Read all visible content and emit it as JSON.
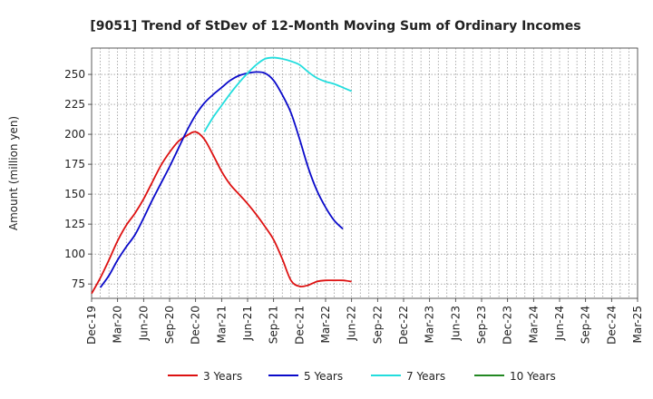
{
  "chart_data": {
    "type": "line",
    "title": "[9051]  Trend of StDev of 12-Month Moving Sum of Ordinary Incomes",
    "ylabel": "Amount (million yen)",
    "xlabel": "",
    "ylim": [
      63,
      272
    ],
    "yticks": [
      75,
      100,
      125,
      150,
      175,
      200,
      225,
      250
    ],
    "xticks": [
      "Dec-19",
      "Mar-20",
      "Jun-20",
      "Sep-20",
      "Dec-20",
      "Mar-21",
      "Jun-21",
      "Sep-21",
      "Dec-21",
      "Mar-22",
      "Jun-22",
      "Sep-22",
      "Dec-22",
      "Mar-23",
      "Jun-23",
      "Sep-23",
      "Dec-23",
      "Mar-24",
      "Jun-24",
      "Sep-24",
      "Dec-24",
      "Mar-25"
    ],
    "grid": true,
    "legend_position": "bottom",
    "series": [
      {
        "name": "3 Years",
        "color": "#dd1111",
        "points": [
          [
            0,
            67
          ],
          [
            1,
            80
          ],
          [
            2,
            95
          ],
          [
            3,
            111
          ],
          [
            4,
            124
          ],
          [
            5,
            134
          ],
          [
            6,
            146
          ],
          [
            7,
            160
          ],
          [
            8,
            174
          ],
          [
            9,
            185
          ],
          [
            10,
            194
          ],
          [
            11,
            199
          ],
          [
            12,
            202
          ],
          [
            13,
            196
          ],
          [
            14,
            183
          ],
          [
            15,
            169
          ],
          [
            16,
            158
          ],
          [
            17,
            150
          ],
          [
            18,
            142
          ],
          [
            19,
            133
          ],
          [
            20,
            123
          ],
          [
            21,
            112
          ],
          [
            22,
            96
          ],
          [
            23,
            78
          ],
          [
            24,
            73
          ],
          [
            25,
            74
          ],
          [
            26,
            77
          ],
          [
            27,
            78
          ],
          [
            28,
            78
          ],
          [
            29,
            78
          ],
          [
            30,
            77
          ]
        ]
      },
      {
        "name": "5 Years",
        "color": "#0a0aca",
        "points": [
          [
            1,
            72
          ],
          [
            2,
            82
          ],
          [
            3,
            95
          ],
          [
            4,
            106
          ],
          [
            5,
            116
          ],
          [
            6,
            130
          ],
          [
            7,
            145
          ],
          [
            8,
            159
          ],
          [
            9,
            173
          ],
          [
            10,
            188
          ],
          [
            11,
            203
          ],
          [
            12,
            216
          ],
          [
            13,
            226
          ],
          [
            14,
            233
          ],
          [
            15,
            239
          ],
          [
            16,
            245
          ],
          [
            17,
            249
          ],
          [
            18,
            251
          ],
          [
            19,
            252
          ],
          [
            20,
            251
          ],
          [
            21,
            245
          ],
          [
            22,
            233
          ],
          [
            23,
            218
          ],
          [
            24,
            196
          ],
          [
            25,
            172
          ],
          [
            26,
            153
          ],
          [
            27,
            139
          ],
          [
            28,
            128
          ],
          [
            29,
            121
          ]
        ]
      },
      {
        "name": "7 Years",
        "color": "#22dddd",
        "points": [
          [
            13,
            202
          ],
          [
            14,
            214
          ],
          [
            15,
            224
          ],
          [
            16,
            234
          ],
          [
            17,
            243
          ],
          [
            18,
            251
          ],
          [
            19,
            258
          ],
          [
            20,
            263
          ],
          [
            21,
            264
          ],
          [
            22,
            263
          ],
          [
            23,
            261
          ],
          [
            24,
            258
          ],
          [
            25,
            252
          ],
          [
            26,
            247
          ],
          [
            27,
            244
          ],
          [
            28,
            242
          ],
          [
            29,
            239
          ],
          [
            30,
            236
          ]
        ]
      },
      {
        "name": "10 Years",
        "color": "#228822",
        "points": []
      }
    ]
  }
}
